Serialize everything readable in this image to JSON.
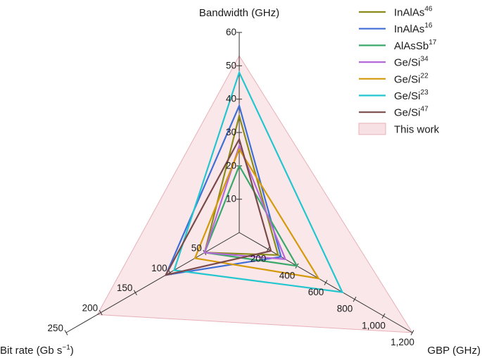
{
  "chart_data": {
    "type": "radar",
    "axes": [
      {
        "key": "bandwidth",
        "label": "Bandwidth (GHz)",
        "max": 60,
        "ticks": [
          10,
          20,
          30,
          40,
          50,
          60
        ],
        "tick_labels": [
          "10",
          "20",
          "30",
          "40",
          "50",
          "60"
        ]
      },
      {
        "key": "gbp",
        "label": "GBP (GHz)",
        "max": 1200,
        "ticks": [
          200,
          400,
          600,
          800,
          1000,
          1200
        ],
        "tick_labels": [
          "200",
          "400",
          "600",
          "800",
          "1,000",
          "1,200"
        ]
      },
      {
        "key": "bitrate",
        "label_main": "Bit rate (Gb s",
        "label_sup": "−1",
        "label_end": ")",
        "max": 250,
        "ticks": [
          50,
          100,
          150,
          200,
          250
        ],
        "tick_labels": [
          "50",
          "100",
          "150",
          "200",
          "250"
        ]
      }
    ],
    "series": [
      {
        "name": "InAlAs",
        "ref": "46",
        "color": "#8b8b1a",
        "values": {
          "bandwidth": 35,
          "gbp": 270,
          "bitrate": 50
        }
      },
      {
        "name": "InAlAs",
        "ref": "16",
        "color": "#3f6fd6",
        "values": {
          "bandwidth": 38,
          "gbp": 290,
          "bitrate": 106
        }
      },
      {
        "name": "AlAsSb",
        "ref": "17",
        "color": "#3aa86b",
        "values": {
          "bandwidth": 20,
          "gbp": 400,
          "bitrate": 50
        }
      },
      {
        "name": "Ge/Si",
        "ref": "34",
        "color": "#b36ad9",
        "values": {
          "bandwidth": 26,
          "gbp": 320,
          "bitrate": 50
        }
      },
      {
        "name": "Ge/Si",
        "ref": "22",
        "color": "#d49a0a",
        "values": {
          "bandwidth": 25,
          "gbp": 550,
          "bitrate": 64
        }
      },
      {
        "name": "Ge/Si",
        "ref": "23",
        "color": "#22c6cf",
        "values": {
          "bandwidth": 48,
          "gbp": 715,
          "bitrate": 94
        }
      },
      {
        "name": "Ge/Si",
        "ref": "47",
        "color": "#7a4a4a",
        "values": {
          "bandwidth": 28,
          "gbp": 220,
          "bitrate": 106
        }
      }
    ],
    "this_work": {
      "name": "This work",
      "fill": "#f7e1e4",
      "stroke": "#e8b0b8",
      "values": {
        "bandwidth": 53,
        "gbp": 1200,
        "bitrate": 205
      }
    }
  }
}
